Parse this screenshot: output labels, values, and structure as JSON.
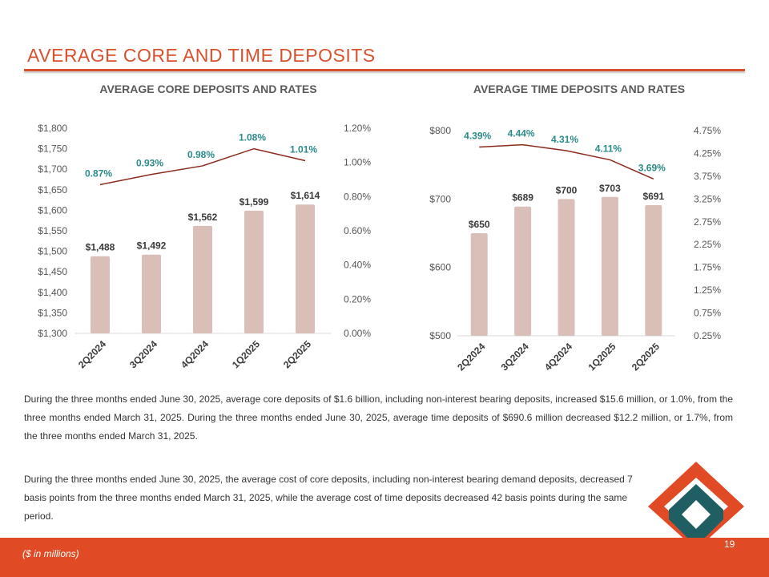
{
  "page_title": "AVERAGE CORE AND TIME DEPOSITS",
  "charts_titles": {
    "core": "AVERAGE CORE DEPOSITS AND RATES",
    "time": "AVERAGE TIME DEPOSITS AND RATES"
  },
  "chart_data": [
    {
      "type": "bar",
      "title": "AVERAGE CORE DEPOSITS AND RATES",
      "categories": [
        "2Q2024",
        "3Q2024",
        "4Q2024",
        "1Q2025",
        "2Q2025"
      ],
      "values": [
        1488,
        1492,
        1562,
        1599,
        1614
      ],
      "value_labels": [
        "$1,488",
        "$1,492",
        "$1,562",
        "$1,599",
        "$1,614"
      ],
      "ylim": [
        1300,
        1800
      ],
      "y_ticks": [
        1300,
        1350,
        1400,
        1450,
        1500,
        1550,
        1600,
        1650,
        1700,
        1750,
        1800
      ],
      "y_tick_labels": [
        "$1,300",
        "$1,350",
        "$1,400",
        "$1,450",
        "$1,500",
        "$1,550",
        "$1,600",
        "$1,650",
        "$1,700",
        "$1,750",
        "$1,800"
      ],
      "secondary": {
        "type": "line",
        "values": [
          0.87,
          0.93,
          0.98,
          1.08,
          1.01
        ],
        "value_labels": [
          "0.87%",
          "0.93%",
          "0.98%",
          "1.08%",
          "1.01%"
        ],
        "ylim": [
          0,
          1.2
        ],
        "y_ticks": [
          0,
          0.2,
          0.4,
          0.6,
          0.8,
          1.0,
          1.2
        ],
        "y_tick_labels": [
          "0.00%",
          "0.20%",
          "0.40%",
          "0.60%",
          "0.80%",
          "1.00%",
          "1.20%"
        ]
      }
    },
    {
      "type": "bar",
      "title": "AVERAGE TIME DEPOSITS AND RATES",
      "categories": [
        "2Q2024",
        "3Q2024",
        "4Q2024",
        "1Q2025",
        "2Q2025"
      ],
      "values": [
        650,
        689,
        700,
        703,
        691
      ],
      "value_labels": [
        "$650",
        "$689",
        "$700",
        "$703",
        "$691"
      ],
      "ylim": [
        500,
        800
      ],
      "y_ticks": [
        500,
        600,
        700,
        800
      ],
      "y_tick_labels": [
        "$500",
        "$600",
        "$700",
        "$800"
      ],
      "secondary": {
        "type": "line",
        "values": [
          4.39,
          4.44,
          4.31,
          4.11,
          3.69
        ],
        "value_labels": [
          "4.39%",
          "4.44%",
          "4.31%",
          "4.11%",
          "3.69%"
        ],
        "ylim": [
          0.25,
          4.75
        ],
        "y_ticks": [
          0.25,
          0.75,
          1.25,
          1.75,
          2.25,
          2.75,
          3.25,
          3.75,
          4.25,
          4.75
        ],
        "y_tick_labels": [
          "0.25%",
          "0.75%",
          "1.25%",
          "1.75%",
          "2.25%",
          "2.75%",
          "3.25%",
          "3.75%",
          "4.25%",
          "4.75%"
        ]
      }
    }
  ],
  "paragraphs": [
    "During the three months ended June 30, 2025, average core deposits of $1.6 billion, including non-interest bearing deposits, increased $15.6 million, or 1.0%, from the three months ended March 31, 2025. During the three months ended June 30, 2025, average time deposits of $690.6 million decreased $12.2 million, or 1.7%, from the three months ended March 31, 2025.",
    "During the three months ended June 30, 2025, the average cost of core deposits, including non-interest bearing demand deposits, decreased 7 basis points from the three months ended March 31, 2025, while the average cost of time deposits decreased 42 basis points during the same period."
  ],
  "footnote": "($ in millions)",
  "page_number": "19",
  "colors": {
    "accent": "#d8512d",
    "footer": "#e04a25",
    "bar": "#d9bfb8",
    "line": "#8b2a1c",
    "line_label": "#2b8a8a",
    "logo_orange": "#e04a25",
    "logo_teal": "#1f5f63"
  }
}
